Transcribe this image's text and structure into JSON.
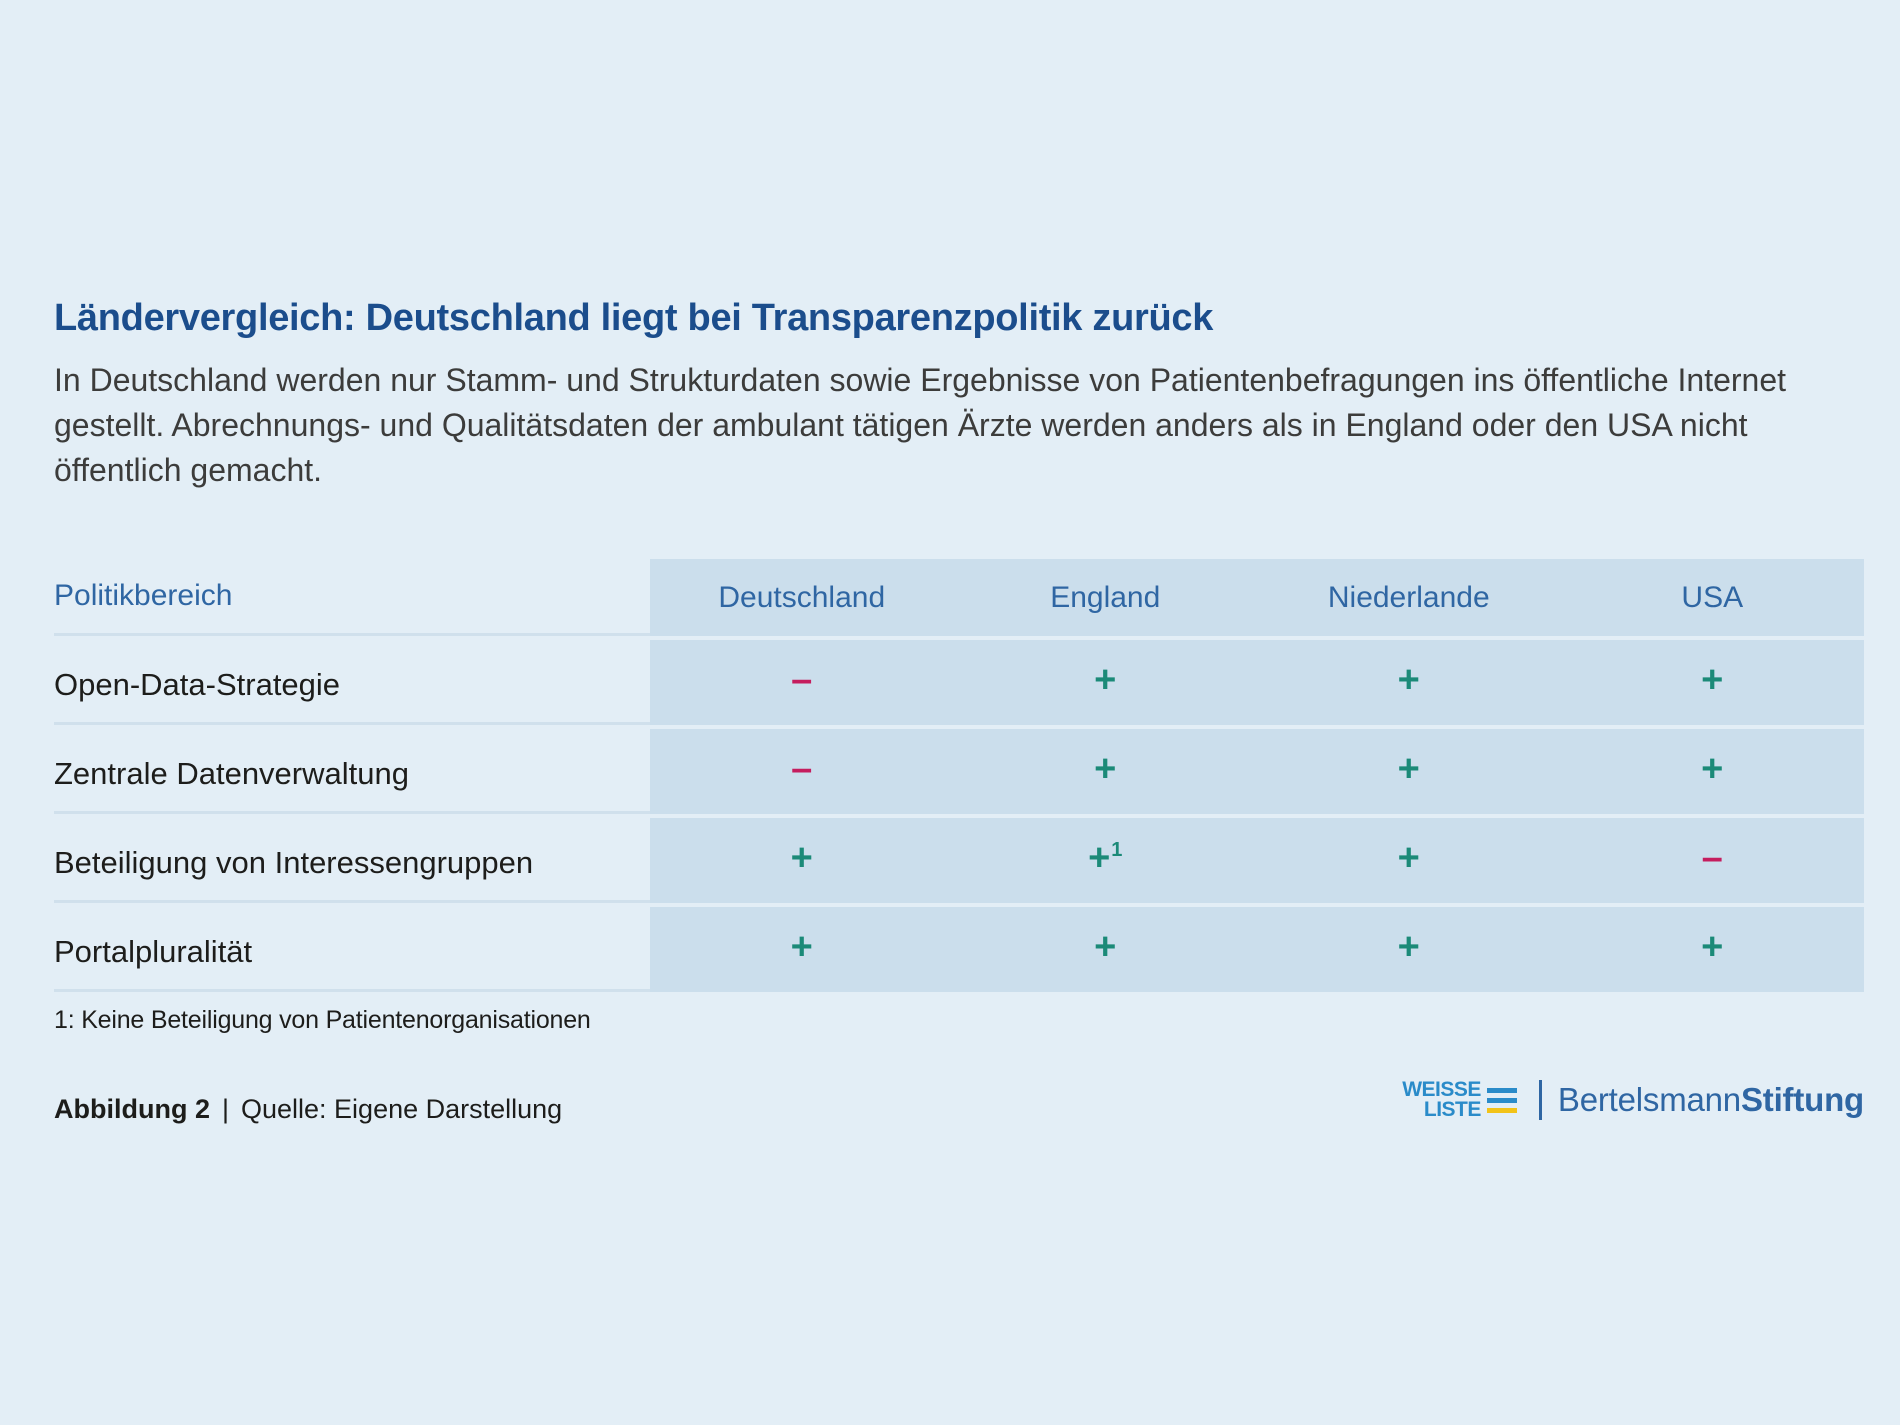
{
  "title": "Ländervergleich: Deutschland liegt bei Transparenzpolitik zurück",
  "subtitle": "In Deutschland werden nur Stamm- und Strukturdaten sowie Ergebnisse von Patientenbefragungen ins öffentliche Internet gestellt. Abrechnungs- und Qualitätsdaten der ambulant tätigen Ärzte werden anders als in England oder den USA nicht öffentlich gemacht.",
  "table": {
    "header_label": "Politikbereich",
    "countries": [
      "Deutschland",
      "England",
      "Niederlande",
      "USA"
    ],
    "rows": [
      {
        "label": "Open-Data-Strategie",
        "values": [
          "–",
          "+",
          "+",
          "+"
        ],
        "notes": [
          "",
          "",
          "",
          ""
        ]
      },
      {
        "label": "Zentrale Datenverwaltung",
        "values": [
          "–",
          "+",
          "+",
          "+"
        ],
        "notes": [
          "",
          "",
          "",
          ""
        ]
      },
      {
        "label": "Beteiligung von Interessengruppen",
        "values": [
          "+",
          "+",
          "+",
          "–"
        ],
        "notes": [
          "",
          "1",
          "",
          ""
        ]
      },
      {
        "label": "Portalpluralität",
        "values": [
          "+",
          "+",
          "+",
          "+"
        ],
        "notes": [
          "",
          "",
          "",
          ""
        ]
      }
    ],
    "footnote": "1: Keine Beteiligung von Patientenorganisationen"
  },
  "footer": {
    "figure_label": "Abbildung 2",
    "separator": "|",
    "source": "Quelle: Eigene Darstellung"
  },
  "logos": {
    "weisse_liste_line1": "WEISSE",
    "weisse_liste_line2": "LISTE",
    "bertelsmann_regular": "Bertelsmann",
    "bertelsmann_bold": "Stiftung"
  },
  "colors": {
    "background": "#e3eef6",
    "title": "#1b4d8c",
    "plus": "#1b8a78",
    "minus": "#c51d5e",
    "cell_bg": "#cbdeec"
  }
}
